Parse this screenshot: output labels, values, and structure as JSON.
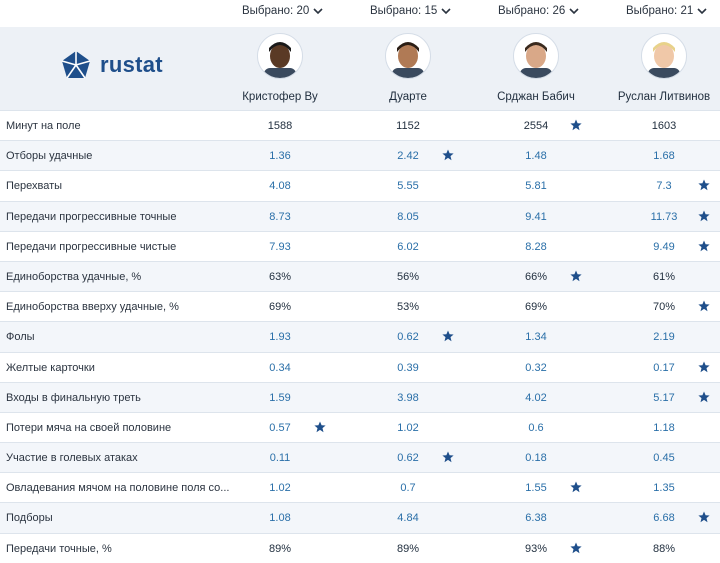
{
  "selectors": [
    "Выбрано: 20",
    "Выбрано: 15",
    "Выбрано: 26",
    "Выбрано: 21"
  ],
  "logo_text": "rustat",
  "players": [
    {
      "name": "Кристофер Ву",
      "skin": "#5a3a25",
      "hair": "#1a1a1a"
    },
    {
      "name": "Дуарте",
      "skin": "#b07a55",
      "hair": "#2a1d14"
    },
    {
      "name": "Срджан Бабич",
      "skin": "#d9a888",
      "hair": "#3a2a1e"
    },
    {
      "name": "Руслан Литвинов",
      "skin": "#f0c8a8",
      "hair": "#e8d28a"
    }
  ],
  "rows": [
    {
      "metric": "Минут на поле",
      "values": [
        "1588",
        "1152",
        "2554",
        "1603"
      ],
      "star": 2,
      "dark": true
    },
    {
      "metric": "Отборы удачные",
      "values": [
        "1.36",
        "2.42",
        "1.48",
        "1.68"
      ],
      "star": 1
    },
    {
      "metric": "Перехваты",
      "values": [
        "4.08",
        "5.55",
        "5.81",
        "7.3"
      ],
      "star": 3
    },
    {
      "metric": "Передачи прогрессивные точные",
      "values": [
        "8.73",
        "8.05",
        "9.41",
        "11.73"
      ],
      "star": 3
    },
    {
      "metric": "Передачи прогрессивные чистые",
      "values": [
        "7.93",
        "6.02",
        "8.28",
        "9.49"
      ],
      "star": 3
    },
    {
      "metric": "Единоборства удачные, %",
      "values": [
        "63%",
        "56%",
        "66%",
        "61%"
      ],
      "star": 2,
      "dark": true
    },
    {
      "metric": "Единоборства вверху удачные, %",
      "values": [
        "69%",
        "53%",
        "69%",
        "70%"
      ],
      "star": 3,
      "dark": true
    },
    {
      "metric": "Фолы",
      "values": [
        "1.93",
        "0.62",
        "1.34",
        "2.19"
      ],
      "star": 1
    },
    {
      "metric": "Желтые карточки",
      "values": [
        "0.34",
        "0.39",
        "0.32",
        "0.17"
      ],
      "star": 3
    },
    {
      "metric": "Входы в финальную треть",
      "values": [
        "1.59",
        "3.98",
        "4.02",
        "5.17"
      ],
      "star": 3
    },
    {
      "metric": "Потери мяча на своей половине",
      "values": [
        "0.57",
        "1.02",
        "0.6",
        "1.18"
      ],
      "star": 0
    },
    {
      "metric": "Участие в голевых атаках",
      "values": [
        "0.11",
        "0.62",
        "0.18",
        "0.45"
      ],
      "star": 1
    },
    {
      "metric": "Овладевания мячом на половине поля со...",
      "values": [
        "1.02",
        "0.7",
        "1.55",
        "1.35"
      ],
      "star": 2
    },
    {
      "metric": "Подборы",
      "values": [
        "1.08",
        "4.84",
        "6.38",
        "6.68"
      ],
      "star": 3
    },
    {
      "metric": "Передачи точные, %",
      "values": [
        "89%",
        "89%",
        "93%",
        "88%"
      ],
      "star": 2,
      "dark": true
    }
  ],
  "colors": {
    "accent": "#1f4f8b",
    "value": "#2a6fa8",
    "header_bg": "#edf1f6",
    "row_alt": "#f3f6fa"
  }
}
